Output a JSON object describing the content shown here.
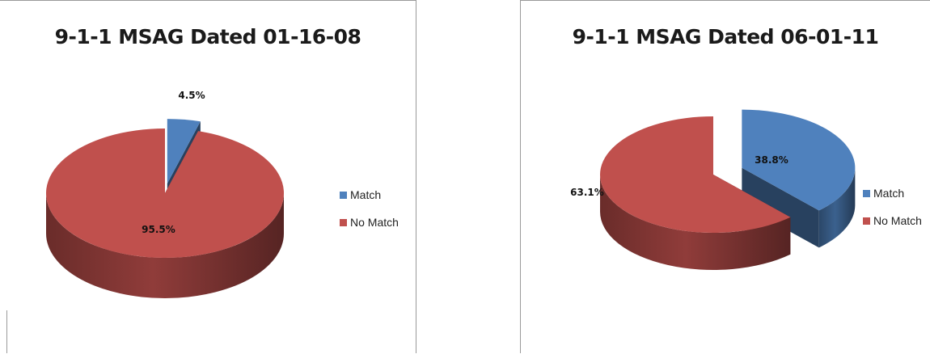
{
  "colors": {
    "match": "#4f81bd",
    "no_match": "#c0504d"
  },
  "chart_data": [
    {
      "type": "pie",
      "title": "9-1-1 MSAG Dated 01-16-08",
      "categories": [
        "Match",
        "No Match"
      ],
      "values": [
        4.5,
        95.5
      ],
      "data_labels": [
        "4.5%",
        "95.5%"
      ],
      "legend": {
        "placement": "right",
        "entries": [
          "Match",
          "No Match"
        ]
      },
      "exploded": "Match",
      "style": "3d"
    },
    {
      "type": "pie",
      "title": "9-1-1 MSAG Dated 06-01-11",
      "categories": [
        "Match",
        "No Match"
      ],
      "values": [
        38.8,
        63.1
      ],
      "data_labels": [
        "38.8%",
        "63.1%"
      ],
      "legend": {
        "placement": "right",
        "entries": [
          "Match",
          "No Match"
        ]
      },
      "exploded": "Match",
      "style": "3d"
    }
  ]
}
